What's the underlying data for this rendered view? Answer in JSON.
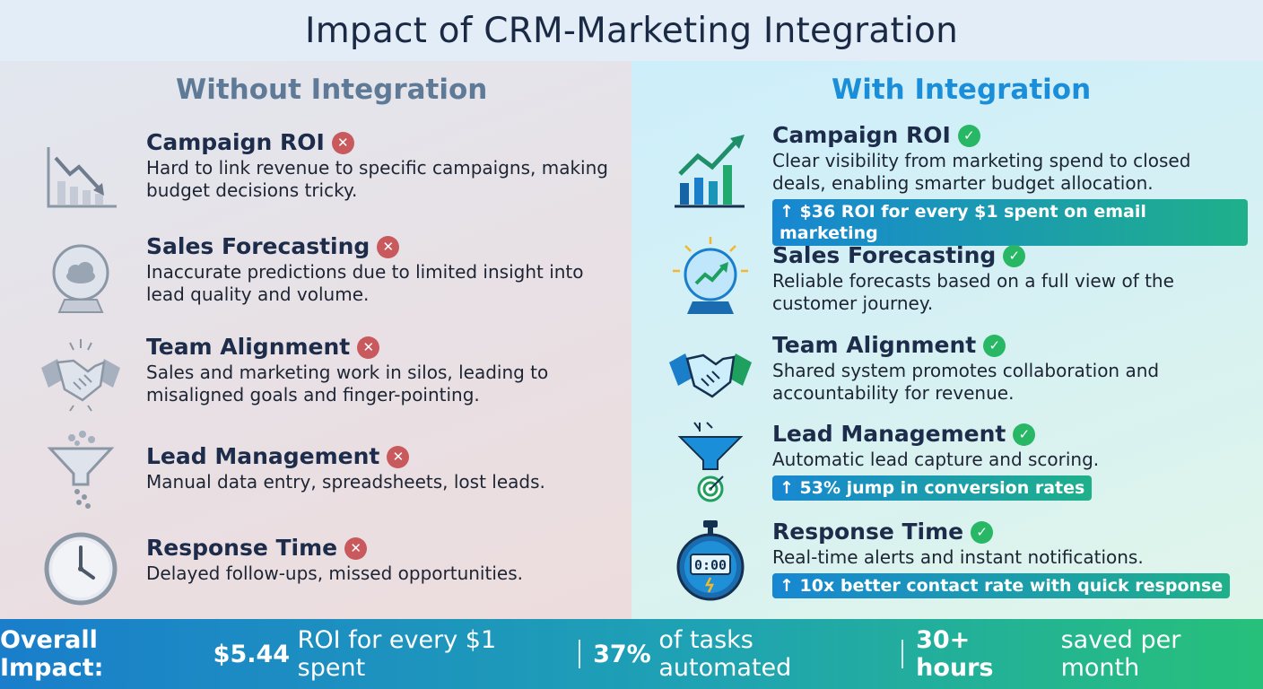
{
  "title": "Impact of CRM-Marketing Integration",
  "left": {
    "heading": "Without Integration",
    "items": [
      {
        "title": "Campaign ROI",
        "desc": "Hard to link revenue to specific campaigns, making budget decisions tricky.",
        "icon": "declining-chart-icon"
      },
      {
        "title": "Sales Forecasting",
        "desc": "Inaccurate predictions due to limited insight into lead quality and volume.",
        "icon": "cloudy-crystal-ball-icon"
      },
      {
        "title": "Team Alignment",
        "desc": "Sales and marketing work in silos, leading to misaligned goals and finger-pointing.",
        "icon": "broken-handshake-icon"
      },
      {
        "title": "Lead Management",
        "desc": "Manual data entry, spreadsheets, lost leads.",
        "icon": "leaky-funnel-icon"
      },
      {
        "title": "Response Time",
        "desc": "Delayed follow-ups, missed opportunities.",
        "icon": "clock-icon"
      }
    ]
  },
  "right": {
    "heading": "With Integration",
    "items": [
      {
        "title": "Campaign ROI",
        "desc": "Clear visibility from marketing spend to closed deals, enabling smarter budget allocation.",
        "stat": "↑ $36 ROI for every $1 spent on email marketing",
        "icon": "growth-chart-icon"
      },
      {
        "title": "Sales Forecasting",
        "desc": "Reliable forecasts based on a full view of the customer journey.",
        "icon": "crystal-ball-trend-icon"
      },
      {
        "title": "Team Alignment",
        "desc": "Shared system promotes collaboration and accountability for revenue.",
        "icon": "handshake-icon"
      },
      {
        "title": "Lead Management",
        "desc": "Automatic lead capture and scoring.",
        "stat": "↑ 53% jump in conversion rates",
        "icon": "funnel-target-icon"
      },
      {
        "title": "Response Time",
        "desc": "Real-time alerts and instant notifications.",
        "stat": "↑ 10x better contact rate with quick response",
        "icon": "stopwatch-icon",
        "timer": "0:00"
      }
    ]
  },
  "footer": {
    "label": "Overall Impact:",
    "roi_value": "$5.44",
    "roi_text": "ROI for every $1 spent",
    "tasks_value": "37%",
    "tasks_text": "of tasks automated",
    "hours_value": "30+ hours",
    "hours_text": "saved per month"
  },
  "colors": {
    "negative": "#c85a5e",
    "positive": "#28b765",
    "accent_blue": "#1a8ed8",
    "accent_green": "#27c07a"
  }
}
